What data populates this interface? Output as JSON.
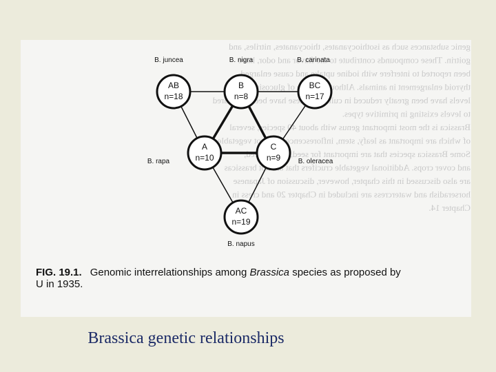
{
  "background_text": [
    "genic substances such as isothiocyanates, thiocyanates, nitriles, and",
    "goitrin. These compounds contribute to the flavor and odor, have",
    "been reported to interfere with iodine uptake and cause enlarged",
    "thyroid enlargement in animals. Although intake of glucosinolate",
    "levels have been greatly reduced in cultivars, these have been compared",
    "to levels existing in primitive types.",
    "Brassica is the most important genus with about 40 species, several",
    "of which are important as leafy, stem, inflorescence and root vegetables.",
    "Some Brassica species that are important for seed, animal feed,",
    "and cover crops. Additional vegetable crucifers that are not brassicas",
    "are also discussed in this chapter, however, discussion of Japanese",
    "horseradish and watercress are included in Chapter 20 and cress in",
    "Chapter 14."
  ],
  "nodes": [
    {
      "species": "B. juncea",
      "genome": "AB",
      "chromosomes": "n=18"
    },
    {
      "species": "B. nigra",
      "genome": "B",
      "chromosomes": "n=8"
    },
    {
      "species": "B. carinata",
      "genome": "BC",
      "chromosomes": "n=17"
    },
    {
      "species": "B. rapa",
      "genome": "A",
      "chromosomes": "n=10"
    },
    {
      "species": "B. oleracea",
      "genome": "C",
      "chromosomes": "n=9"
    },
    {
      "species": "B. napus",
      "genome": "AC",
      "chromosomes": "n=19"
    }
  ],
  "caption": {
    "label": "FIG. 19.1.",
    "text_1": "Genomic interrelationships among ",
    "italic": "Brassica",
    "text_2": " species as proposed by",
    "line_2": "U in 1935."
  },
  "slide_title": "Brassica genetic relationships"
}
